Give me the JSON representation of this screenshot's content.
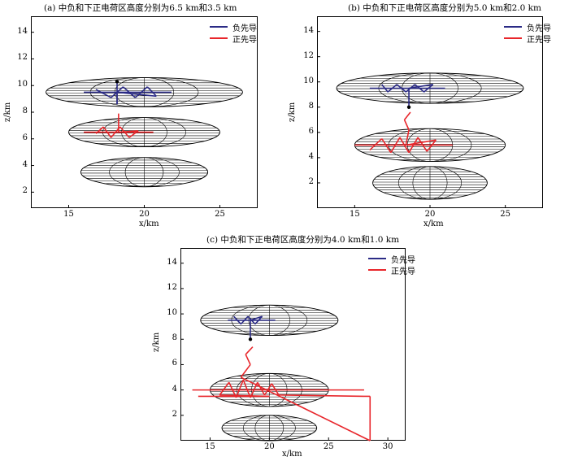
{
  "chart_data": [
    {
      "type": "line",
      "title": "(a) 中负和下正电荷区高度分别为6.5 km和3.5 km",
      "xlabel": "x/km",
      "ylabel": "z/km",
      "xlim": [
        12.5,
        27.5
      ],
      "ylim": [
        0.8,
        15.2
      ],
      "xticks": [
        15,
        20,
        25
      ],
      "yticks": [
        2,
        4,
        6,
        8,
        10,
        12,
        14
      ],
      "legend_position": "top-right",
      "series": [
        {
          "name": "负先导",
          "color": "#2b2b86"
        },
        {
          "name": "正先导",
          "color": "#e8262b"
        }
      ],
      "charge_regions": [
        {
          "cx": 20,
          "cz": 9.5,
          "rx": 6.5,
          "rz": 1.1
        },
        {
          "cx": 20,
          "cz": 6.5,
          "rx": 5.0,
          "rz": 1.1
        },
        {
          "cx": 20,
          "cz": 3.5,
          "rx": 4.2,
          "rz": 1.1
        }
      ],
      "negative_leader": [
        [
          16,
          9.5
        ],
        [
          21.8,
          9.5
        ],
        [
          16.8,
          9.7
        ],
        [
          17.8,
          9.1
        ],
        [
          18.6,
          9.9
        ],
        [
          19.4,
          9.1
        ],
        [
          20.2,
          9.9
        ],
        [
          20.8,
          9.2
        ],
        [
          18.2,
          9.5
        ],
        [
          18.2,
          8.6
        ],
        [
          18.2,
          10.3
        ]
      ],
      "positive_leader": [
        [
          16,
          6.5
        ],
        [
          20.6,
          6.5
        ],
        [
          16.8,
          6.4
        ],
        [
          17.3,
          6.9
        ],
        [
          17.8,
          6.1
        ],
        [
          18.4,
          6.9
        ],
        [
          19.0,
          6.1
        ],
        [
          19.6,
          6.6
        ],
        [
          18.3,
          6.5
        ],
        [
          18.3,
          7.9
        ]
      ]
    },
    {
      "type": "line",
      "title": "(b) 中负和下正电荷区高度分别为5.0 km和2.0 km",
      "xlabel": "x/km",
      "ylabel": "z/km",
      "xlim": [
        12.5,
        27.5
      ],
      "ylim": [
        0.0,
        15.2
      ],
      "xticks": [
        15,
        20,
        25
      ],
      "yticks": [
        2,
        4,
        6,
        8,
        10,
        12,
        14
      ],
      "legend_position": "top-right",
      "series": [
        {
          "name": "负先导",
          "color": "#2b2b86"
        },
        {
          "name": "正先导",
          "color": "#e8262b"
        }
      ],
      "charge_regions": [
        {
          "cx": 20,
          "cz": 9.5,
          "rx": 6.2,
          "rz": 1.2
        },
        {
          "cx": 20,
          "cz": 5.0,
          "rx": 5.0,
          "rz": 1.3
        },
        {
          "cx": 20,
          "cz": 2.0,
          "rx": 3.8,
          "rz": 1.3
        }
      ],
      "negative_leader": [
        [
          16.0,
          9.5
        ],
        [
          21.0,
          9.5
        ],
        [
          16.8,
          9.8
        ],
        [
          17.2,
          9.2
        ],
        [
          17.8,
          9.8
        ],
        [
          18.4,
          9.2
        ],
        [
          19.0,
          9.8
        ],
        [
          19.6,
          9.2
        ],
        [
          20.2,
          9.8
        ],
        [
          18.6,
          9.5
        ],
        [
          18.6,
          8.0
        ]
      ],
      "positive_leader": [
        [
          15.0,
          5.0
        ],
        [
          21.5,
          5.0
        ],
        [
          16.0,
          4.6
        ],
        [
          16.8,
          5.5
        ],
        [
          17.4,
          4.4
        ],
        [
          18.0,
          5.6
        ],
        [
          18.6,
          4.4
        ],
        [
          19.2,
          5.6
        ],
        [
          19.8,
          4.5
        ],
        [
          20.4,
          5.4
        ],
        [
          18.4,
          5.0
        ],
        [
          18.6,
          6.2
        ],
        [
          18.3,
          7.0
        ],
        [
          18.7,
          7.6
        ]
      ]
    },
    {
      "type": "line",
      "title": "(c) 中负和下正电荷区高度分别为4.0 km和1.0 km",
      "xlabel": "x/km",
      "ylabel": "z/km",
      "xlim": [
        12.5,
        31.5
      ],
      "ylim": [
        0.0,
        15.2
      ],
      "xticks": [
        15,
        20,
        25,
        30
      ],
      "yticks": [
        2,
        4,
        6,
        8,
        10,
        12,
        14
      ],
      "legend_position": "top-right",
      "series": [
        {
          "name": "负先导",
          "color": "#2b2b86"
        },
        {
          "name": "正先导",
          "color": "#e8262b"
        }
      ],
      "charge_regions": [
        {
          "cx": 20,
          "cz": 9.5,
          "rx": 5.8,
          "rz": 1.2
        },
        {
          "cx": 20,
          "cz": 4.0,
          "rx": 5.0,
          "rz": 1.3
        },
        {
          "cx": 20,
          "cz": 1.0,
          "rx": 4.0,
          "rz": 1.0
        }
      ],
      "negative_leader": [
        [
          16.5,
          9.5
        ],
        [
          20.5,
          9.5
        ],
        [
          17.0,
          9.8
        ],
        [
          17.6,
          9.2
        ],
        [
          18.2,
          9.8
        ],
        [
          18.8,
          9.2
        ],
        [
          19.4,
          9.8
        ],
        [
          18.4,
          9.5
        ],
        [
          18.4,
          8.0
        ]
      ],
      "positive_leader": [
        [
          13.5,
          4.0
        ],
        [
          28.0,
          4.0
        ],
        [
          14.0,
          3.5
        ],
        [
          20.0,
          3.5
        ],
        [
          15.8,
          3.6
        ],
        [
          16.6,
          4.6
        ],
        [
          17.2,
          3.4
        ],
        [
          17.8,
          4.8
        ],
        [
          18.4,
          3.4
        ],
        [
          19.0,
          4.6
        ],
        [
          19.6,
          3.6
        ],
        [
          20.2,
          4.5
        ],
        [
          20.8,
          3.6
        ],
        [
          28.0,
          3.5
        ],
        [
          28.5,
          3.5
        ],
        [
          28.5,
          0.0
        ],
        [
          17.6,
          5.0
        ],
        [
          18.4,
          6.0
        ],
        [
          18.0,
          6.8
        ],
        [
          18.6,
          7.4
        ]
      ]
    }
  ]
}
